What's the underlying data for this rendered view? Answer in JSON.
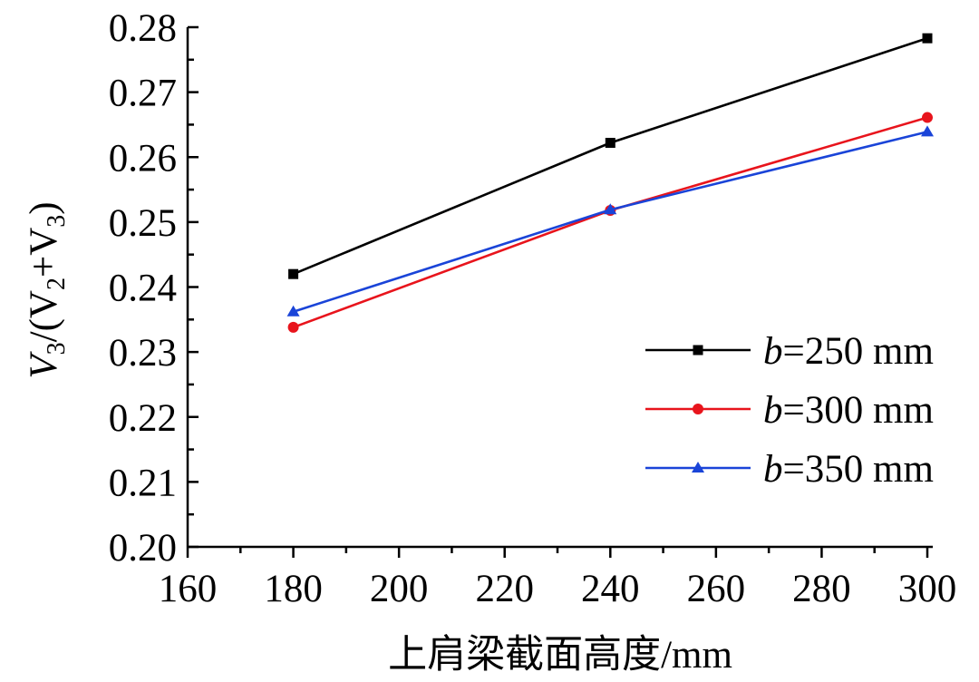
{
  "chart_data": {
    "type": "line",
    "title": "",
    "xlabel": "上肩梁截面高度/mm",
    "ylabel": "V3/(V2+V3)",
    "ylabel_parts": {
      "v3a": "V",
      "sub3a": "3",
      "mid": "/(V",
      "sub2": "2",
      "plus": "+V",
      "sub3b": "3",
      "close": ")"
    },
    "xlim": [
      160,
      300
    ],
    "ylim": [
      0.2,
      0.28
    ],
    "x_ticks": [
      160,
      180,
      200,
      220,
      240,
      260,
      280,
      300
    ],
    "x_tick_labels": [
      "160",
      "180",
      "200",
      "220",
      "240",
      "260",
      "280",
      "300"
    ],
    "y_ticks": [
      0.2,
      0.21,
      0.22,
      0.23,
      0.24,
      0.25,
      0.26,
      0.27,
      0.28
    ],
    "y_tick_labels": [
      "0.20",
      "0.21",
      "0.22",
      "0.23",
      "0.24",
      "0.25",
      "0.26",
      "0.27",
      "0.28"
    ],
    "x": [
      180,
      240,
      300
    ],
    "legend_position": "bottom-right",
    "series": [
      {
        "name": "b=250 mm",
        "label_var": "b",
        "label_rest": "=250 mm",
        "color": "#000000",
        "marker": "square",
        "values": [
          0.242,
          0.2622,
          0.2783
        ]
      },
      {
        "name": "b=300 mm",
        "label_var": "b",
        "label_rest": "=300 mm",
        "color": "#e8141c",
        "marker": "circle",
        "values": [
          0.2338,
          0.2518,
          0.2661
        ]
      },
      {
        "name": "b=350 mm",
        "label_var": "b",
        "label_rest": "=350 mm",
        "color": "#1a44d8",
        "marker": "triangle",
        "values": [
          0.2362,
          0.2519,
          0.2639
        ]
      }
    ]
  }
}
